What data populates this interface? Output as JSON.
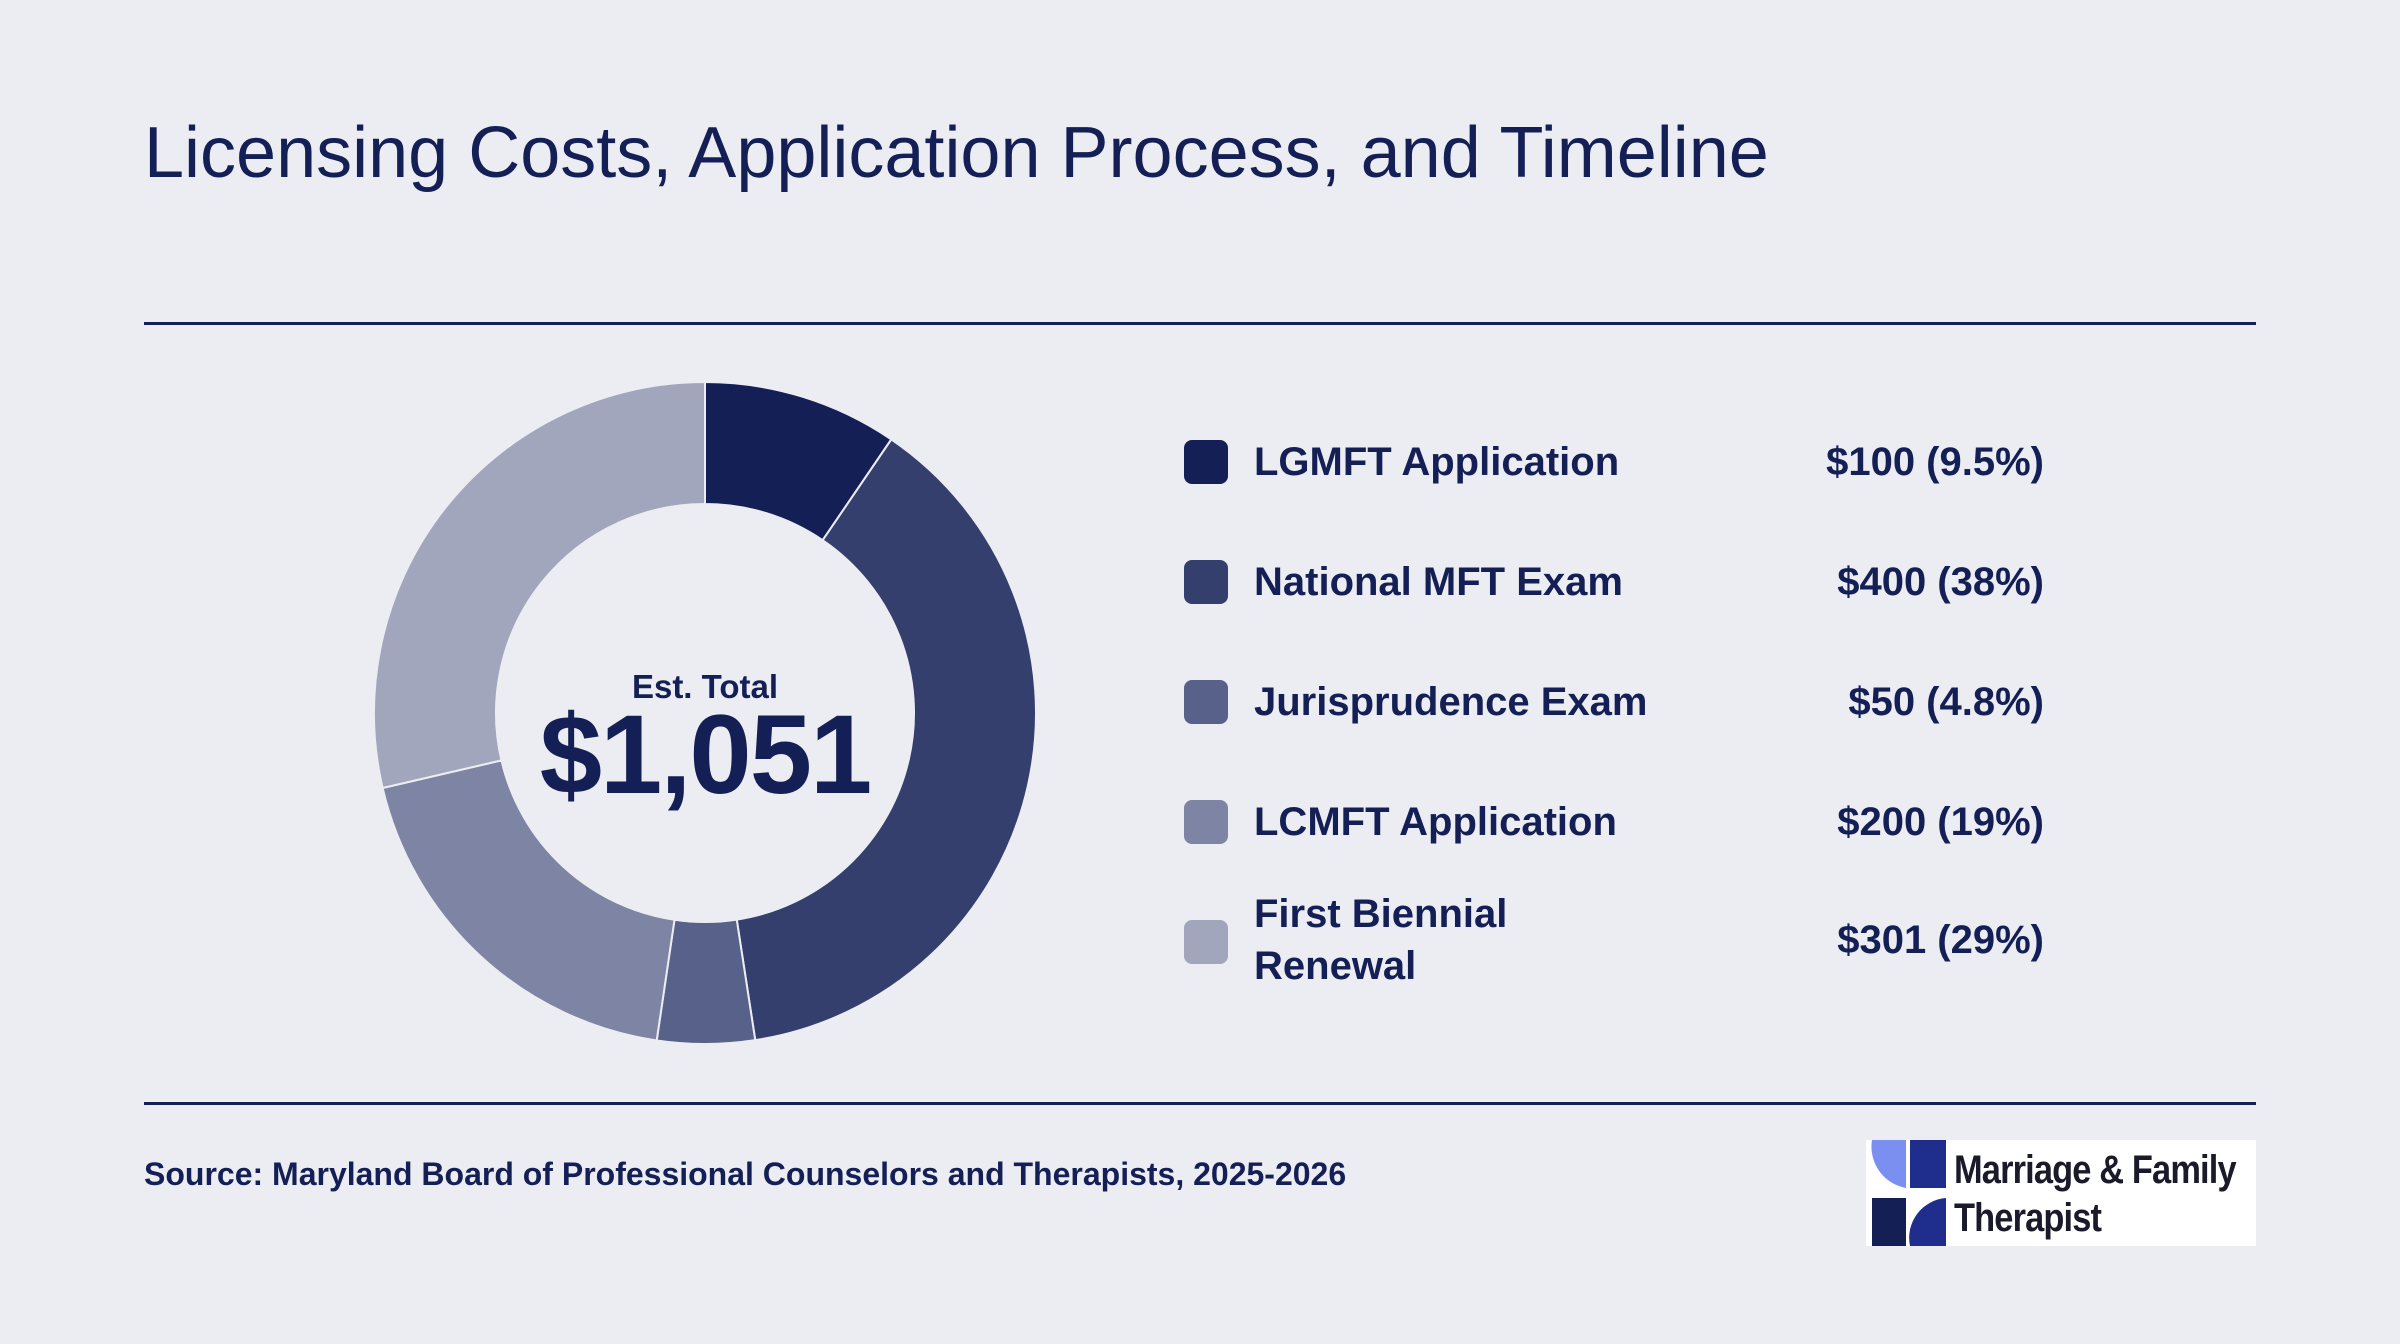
{
  "title": "Licensing Costs, Application Process, and Timeline",
  "center": {
    "label": "Est. Total",
    "value": "$1,051"
  },
  "source": "Source: Maryland Board of Professional Counselors and Therapists, 2025-2026",
  "logo": {
    "line1": "Marriage & Family",
    "line2": "Therapist",
    "icon": "pinwheel-logo-icon"
  },
  "colors": {
    "background": "#ecedf2",
    "text": "#141f55"
  },
  "chart_data": {
    "type": "pie",
    "donut": true,
    "categories": [
      "LGMFT Application",
      "National MFT Exam",
      "Jurisprudence Exam",
      "LCMFT Application",
      "First Biennial Renewal"
    ],
    "values": [
      100,
      400,
      50,
      200,
      301
    ],
    "labels": [
      "$100 (9.5%)",
      "$400 (38%)",
      "$50 (4.8%)",
      "$200 (19%)",
      "$301 (29%)"
    ],
    "colors": [
      "#141f55",
      "#343f6e",
      "#58618a",
      "#7e84a3",
      "#a2a6bd"
    ],
    "legend_placement": "right"
  }
}
